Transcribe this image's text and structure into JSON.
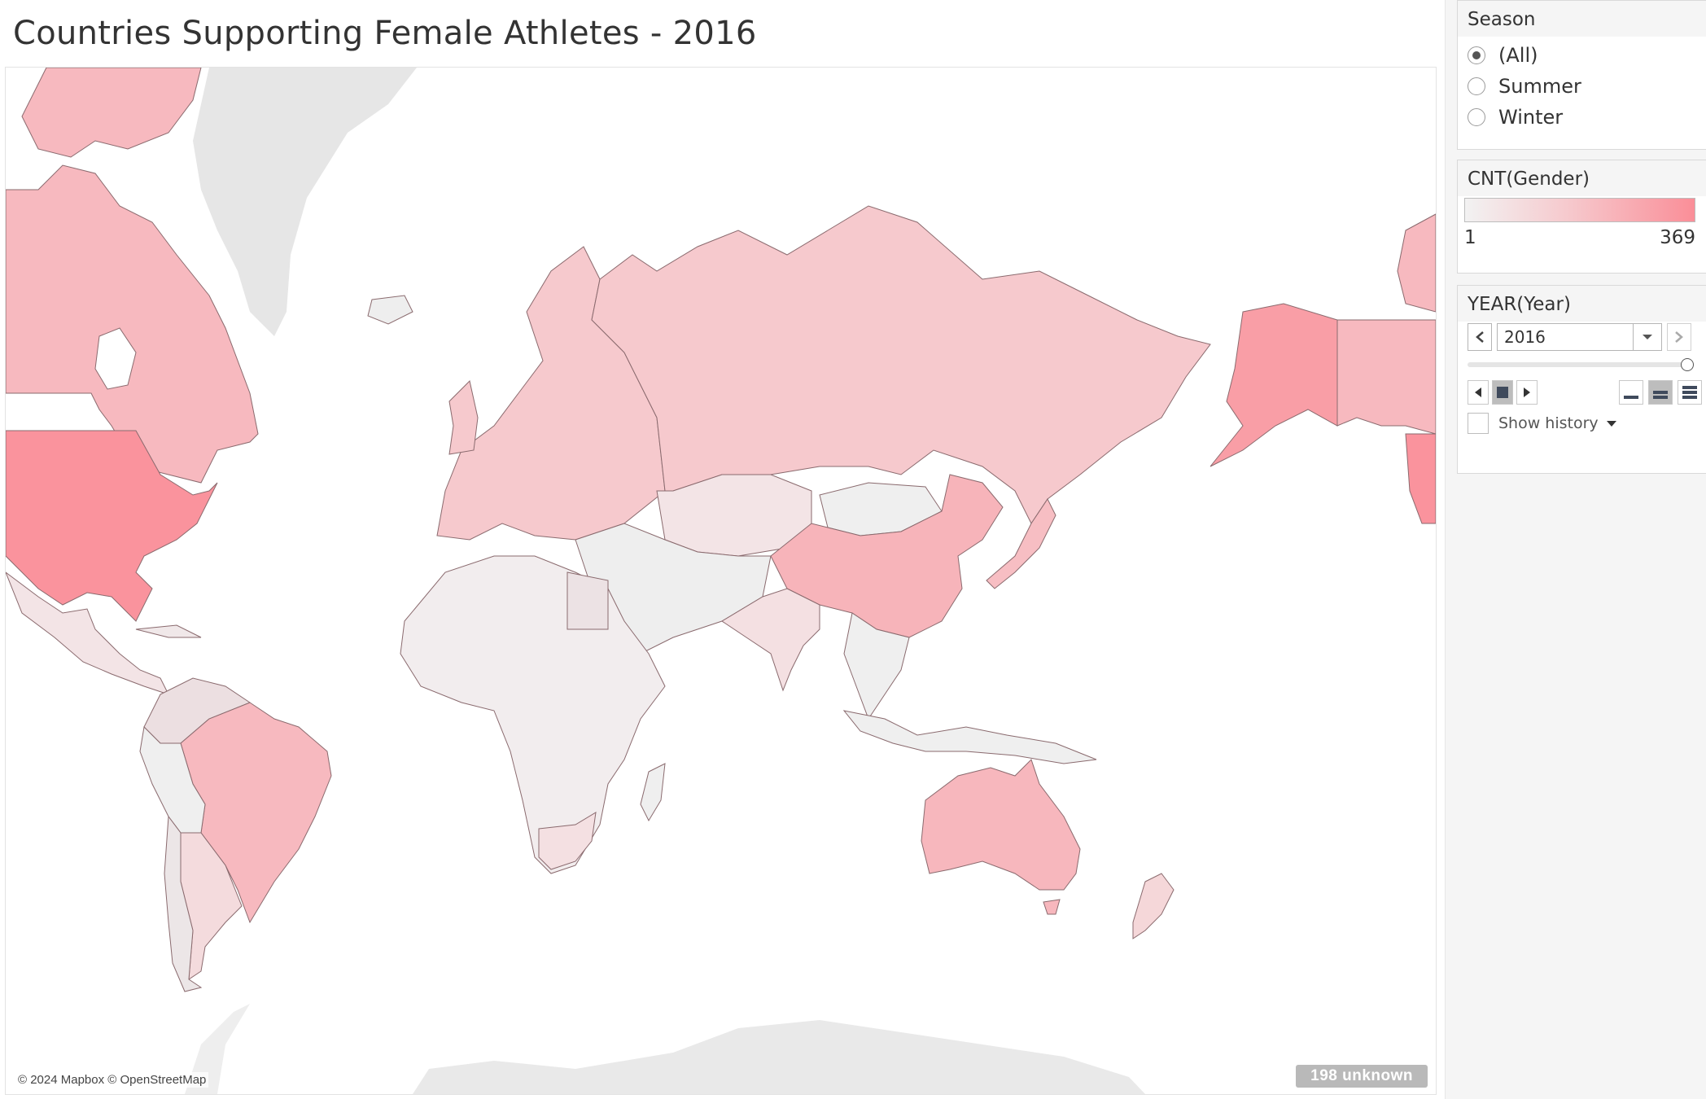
{
  "title": "Countries Supporting Female Athletes - 2016",
  "map": {
    "attribution": "© 2024 Mapbox © OpenStreetMap",
    "unknown_badge": "198 unknown",
    "color_scale": {
      "min_color": "#f2f2f2",
      "mid_color": "#f6c9cd",
      "max_color": "#fa8e98"
    },
    "regions": [
      {
        "name": "United States",
        "level": 0.95
      },
      {
        "name": "Alaska",
        "level": 0.85
      },
      {
        "name": "Canada",
        "level": 0.6
      },
      {
        "name": "Russia",
        "level": 0.45
      },
      {
        "name": "China",
        "level": 0.65
      },
      {
        "name": "Brazil",
        "level": 0.6
      },
      {
        "name": "Australia",
        "level": 0.62
      },
      {
        "name": "Europe",
        "level": 0.45
      },
      {
        "name": "Mexico",
        "level": 0.15
      },
      {
        "name": "Argentina",
        "level": 0.25
      },
      {
        "name": "India",
        "level": 0.2
      },
      {
        "name": "Kazakhstan",
        "level": 0.15
      },
      {
        "name": "Japan",
        "level": 0.55
      },
      {
        "name": "New Zealand",
        "level": 0.3
      },
      {
        "name": "South Africa",
        "level": 0.2
      },
      {
        "name": "Africa",
        "level": 0.05
      },
      {
        "name": "Greenland",
        "level": 0.0
      },
      {
        "name": "Antarctica",
        "level": 0.0
      }
    ]
  },
  "sidebar": {
    "season": {
      "title": "Season",
      "options": [
        {
          "label": "(All)",
          "selected": true
        },
        {
          "label": "Summer",
          "selected": false
        },
        {
          "label": "Winter",
          "selected": false
        }
      ]
    },
    "legend": {
      "title": "CNT(Gender)",
      "min": "1",
      "max": "369"
    },
    "year": {
      "title": "YEAR(Year)",
      "value": "2016",
      "slider_position": 1.0,
      "show_history": "Show history"
    }
  }
}
